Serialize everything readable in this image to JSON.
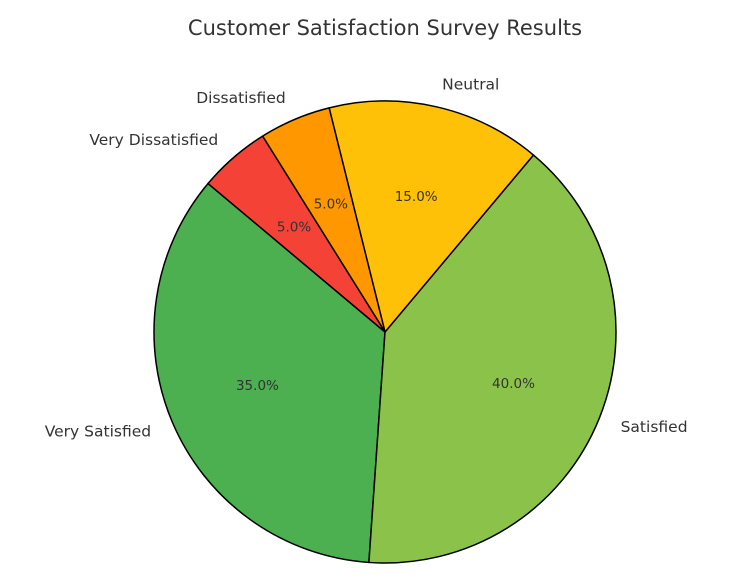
{
  "chart_data": {
    "type": "pie",
    "title": "Customer Satisfaction Survey Results",
    "categories": [
      "Very Satisfied",
      "Satisfied",
      "Neutral",
      "Dissatisfied",
      "Very Dissatisfied"
    ],
    "values": [
      35,
      40,
      15,
      5,
      5
    ],
    "percent_labels": [
      "35.0%",
      "40.0%",
      "15.0%",
      "5.0%",
      "5.0%"
    ],
    "colors": [
      "#4caf50",
      "#8bc34a",
      "#ffc107",
      "#ff9800",
      "#f44336"
    ],
    "start_angle": 140,
    "direction": "counterclockwise",
    "edge_color": "#000000"
  }
}
